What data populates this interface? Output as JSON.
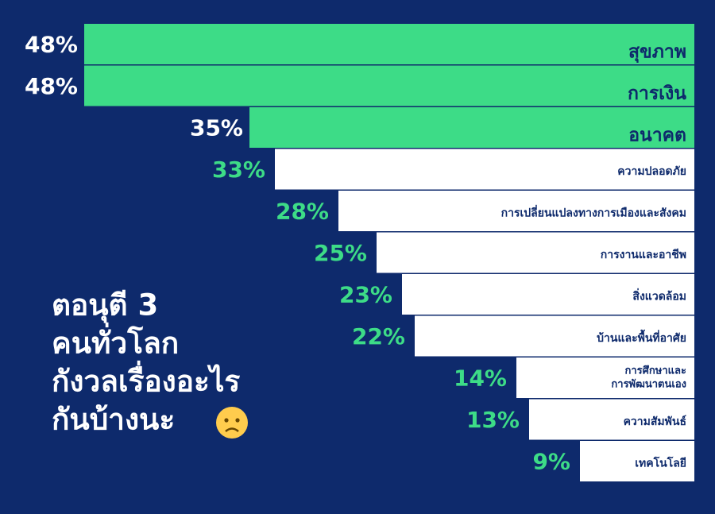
{
  "chart_data": {
    "type": "bar",
    "title_lines": [
      "ตอนุตี 3",
      "คนทั่วโลก",
      "กังวลเรื่องอะไร",
      "กันบ้างนะ"
    ],
    "categories": [
      "สุขภาพ",
      "การเงิน",
      "อนาคต",
      "ความปลอดภัย",
      "การเปลี่ยนแปลงทางการเมืองและสังคม",
      "การงานและอาชีพ",
      "สิ่งแวดล้อม",
      "บ้านและพื้นที่อาศัย",
      [
        "การศึกษาและ",
        "การพัฒนาตนเอง"
      ],
      "ความสัมพันธ์",
      "เทคโนโลยี"
    ],
    "values": [
      48,
      48,
      35,
      33,
      28,
      25,
      23,
      22,
      14,
      13,
      9
    ],
    "value_labels": [
      "48%",
      "48%",
      "35%",
      "33%",
      "28%",
      "25%",
      "23%",
      "22%",
      "14%",
      "13%",
      "9%"
    ],
    "colors": [
      "#3ddc87",
      "#3ddc87",
      "#3ddc87",
      "#ffffff",
      "#ffffff",
      "#ffffff",
      "#ffffff",
      "#ffffff",
      "#ffffff",
      "#ffffff",
      "#ffffff"
    ]
  }
}
